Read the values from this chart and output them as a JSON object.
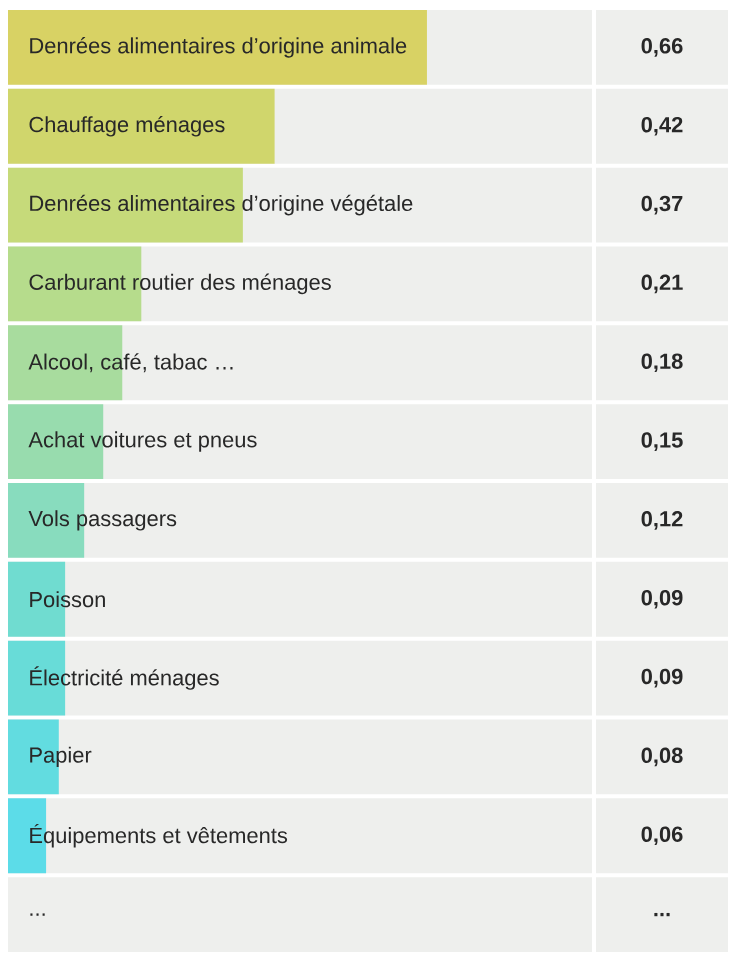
{
  "chart_data": {
    "type": "bar",
    "orientation": "horizontal",
    "categories": [
      "Denrées alimentaires d’origine animale",
      "Chauffage ménages",
      "Denrées alimentaires d’origine végétale",
      "Carburant routier des ménages",
      "Alcool, café, tabac …",
      "Achat voitures et pneus",
      "Vols passagers",
      "Poisson",
      "Électricité ménages",
      "Papier",
      "Équipements et vêtements",
      "..."
    ],
    "values": [
      0.66,
      0.42,
      0.37,
      0.21,
      0.18,
      0.15,
      0.12,
      0.09,
      0.09,
      0.08,
      0.06,
      null
    ],
    "colors": [
      "#d8d264",
      "#d0d66c",
      "#c6da7a",
      "#b6dc8c",
      "#a8dc9e",
      "#98dcae",
      "#88dcbe",
      "#70dcd0",
      "#68dcd8",
      "#62dce0",
      "#5cdce8",
      null
    ],
    "value_labels": [
      "0,66",
      "0,42",
      "0,37",
      "0,21",
      "0,18",
      "0,15",
      "0,12",
      "0,09",
      "0,09",
      "0,08",
      "0,06",
      "..."
    ],
    "xlim": [
      0,
      0.92
    ]
  }
}
